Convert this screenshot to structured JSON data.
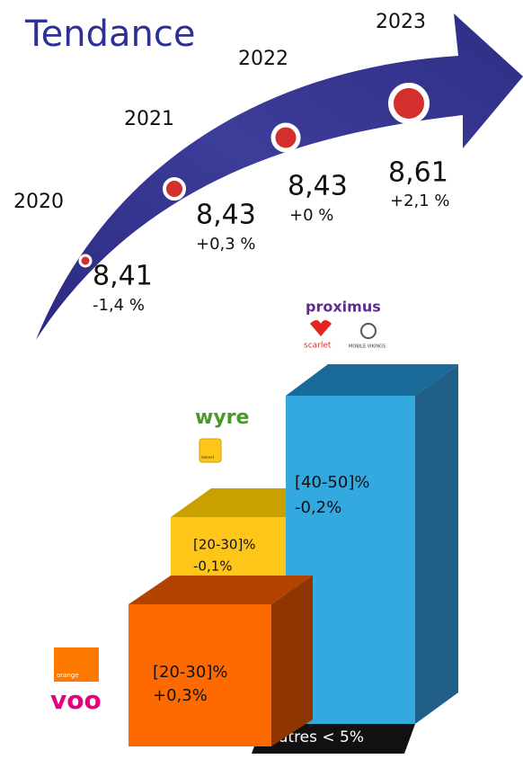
{
  "title": "Tendance",
  "timeline": [
    {
      "year": "2020",
      "value": "8,41",
      "change": "-1,4 %"
    },
    {
      "year": "2021",
      "value": "8,43",
      "change": "+0,3 %"
    },
    {
      "year": "2022",
      "value": "8,43",
      "change": "+0 %"
    },
    {
      "year": "2023",
      "value": "8,61",
      "change": "+2,1 %"
    }
  ],
  "bars": [
    {
      "label": "[40-50]%",
      "change": "-0,2%"
    },
    {
      "label": "[20-30]%",
      "change": "-0,1%"
    },
    {
      "label": "[20-30]%",
      "change": "+0,3%"
    }
  ],
  "others": "Autres < 5%",
  "logos": {
    "proximus": "proximus",
    "scarlet": "scarlet",
    "vikings": "MOBILE VIKINGS",
    "wyre": "wyre",
    "telenet": "telenet",
    "orange": "orange",
    "voo": "voo"
  }
}
